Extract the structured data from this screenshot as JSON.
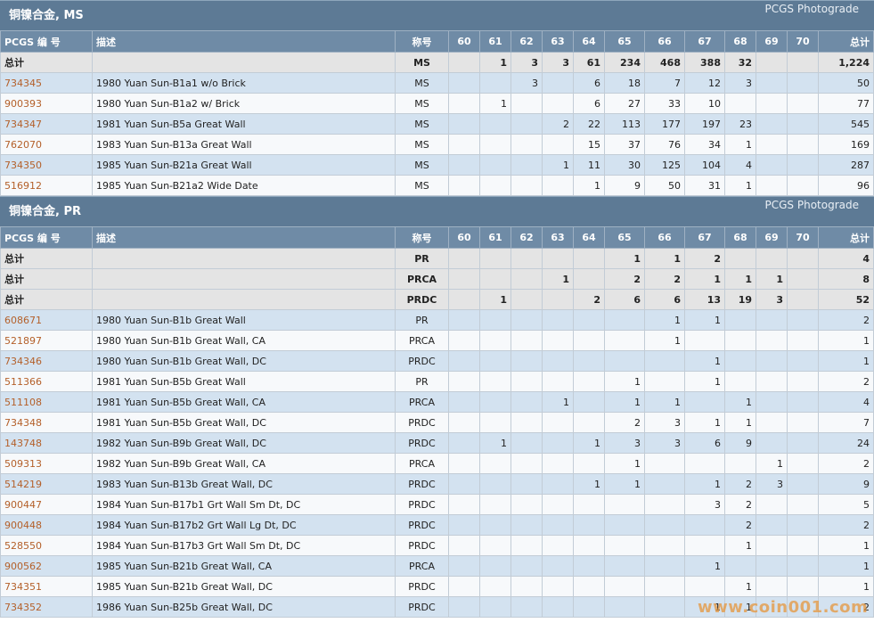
{
  "columns": [
    "PCGS 编 号",
    "描述",
    "称号",
    "60",
    "61",
    "62",
    "63",
    "64",
    "65",
    "66",
    "67",
    "68",
    "69",
    "70",
    "总计"
  ],
  "sections": [
    {
      "title": "铜镍合金, MS",
      "right_label": "PCGS Photograde",
      "totals": [
        {
          "label": "总计",
          "designation": "MS",
          "grades": [
            "",
            "1",
            "3",
            "3",
            "61",
            "234",
            "468",
            "388",
            "32",
            "",
            ""
          ],
          "total": "1,224"
        }
      ],
      "rows": [
        {
          "code": "734345",
          "desc": "1980 Yuan Sun-B1a1 w/o Brick",
          "designation": "MS",
          "grades": [
            "",
            "",
            "3",
            "",
            "6",
            "18",
            "7",
            "12",
            "3",
            "",
            ""
          ],
          "total": "50"
        },
        {
          "code": "900393",
          "desc": "1980 Yuan Sun-B1a2 w/ Brick",
          "designation": "MS",
          "grades": [
            "",
            "1",
            "",
            "",
            "6",
            "27",
            "33",
            "10",
            "",
            "",
            ""
          ],
          "total": "77"
        },
        {
          "code": "734347",
          "desc": "1981 Yuan Sun-B5a Great Wall",
          "designation": "MS",
          "grades": [
            "",
            "",
            "",
            "2",
            "22",
            "113",
            "177",
            "197",
            "23",
            "",
            ""
          ],
          "total": "545"
        },
        {
          "code": "762070",
          "desc": "1983 Yuan Sun-B13a Great Wall",
          "designation": "MS",
          "grades": [
            "",
            "",
            "",
            "",
            "15",
            "37",
            "76",
            "34",
            "1",
            "",
            ""
          ],
          "total": "169"
        },
        {
          "code": "734350",
          "desc": "1985 Yuan Sun-B21a Great Wall",
          "designation": "MS",
          "grades": [
            "",
            "",
            "",
            "1",
            "11",
            "30",
            "125",
            "104",
            "4",
            "",
            ""
          ],
          "total": "287"
        },
        {
          "code": "516912",
          "desc": "1985 Yuan Sun-B21a2 Wide Date",
          "designation": "MS",
          "grades": [
            "",
            "",
            "",
            "",
            "1",
            "9",
            "50",
            "31",
            "1",
            "",
            ""
          ],
          "total": "96"
        }
      ]
    },
    {
      "title": "铜镍合金, PR",
      "right_label": "PCGS Photograde",
      "totals": [
        {
          "label": "总计",
          "designation": "PR",
          "grades": [
            "",
            "",
            "",
            "",
            "",
            "1",
            "1",
            "2",
            "",
            "",
            ""
          ],
          "total": "4"
        },
        {
          "label": "总计",
          "designation": "PRCA",
          "grades": [
            "",
            "",
            "",
            "1",
            "",
            "2",
            "2",
            "1",
            "1",
            "1",
            ""
          ],
          "total": "8"
        },
        {
          "label": "总计",
          "designation": "PRDC",
          "grades": [
            "",
            "1",
            "",
            "",
            "2",
            "6",
            "6",
            "13",
            "19",
            "3",
            ""
          ],
          "total": "52"
        }
      ],
      "rows": [
        {
          "code": "608671",
          "desc": "1980 Yuan Sun-B1b Great Wall",
          "designation": "PR",
          "grades": [
            "",
            "",
            "",
            "",
            "",
            "",
            "1",
            "1",
            "",
            "",
            ""
          ],
          "total": "2"
        },
        {
          "code": "521897",
          "desc": "1980 Yuan Sun-B1b Great Wall, CA",
          "designation": "PRCA",
          "grades": [
            "",
            "",
            "",
            "",
            "",
            "",
            "1",
            "",
            "",
            "",
            ""
          ],
          "total": "1"
        },
        {
          "code": "734346",
          "desc": "1980 Yuan Sun-B1b Great Wall, DC",
          "designation": "PRDC",
          "grades": [
            "",
            "",
            "",
            "",
            "",
            "",
            "",
            "1",
            "",
            "",
            ""
          ],
          "total": "1"
        },
        {
          "code": "511366",
          "desc": "1981 Yuan Sun-B5b Great Wall",
          "designation": "PR",
          "grades": [
            "",
            "",
            "",
            "",
            "",
            "1",
            "",
            "1",
            "",
            "",
            ""
          ],
          "total": "2"
        },
        {
          "code": "511108",
          "desc": "1981 Yuan Sun-B5b Great Wall, CA",
          "designation": "PRCA",
          "grades": [
            "",
            "",
            "",
            "1",
            "",
            "1",
            "1",
            "",
            "1",
            "",
            ""
          ],
          "total": "4"
        },
        {
          "code": "734348",
          "desc": "1981 Yuan Sun-B5b Great Wall, DC",
          "designation": "PRDC",
          "grades": [
            "",
            "",
            "",
            "",
            "",
            "2",
            "3",
            "1",
            "1",
            "",
            ""
          ],
          "total": "7"
        },
        {
          "code": "143748",
          "desc": "1982 Yuan Sun-B9b Great Wall, DC",
          "designation": "PRDC",
          "grades": [
            "",
            "1",
            "",
            "",
            "1",
            "3",
            "3",
            "6",
            "9",
            "",
            ""
          ],
          "total": "24"
        },
        {
          "code": "509313",
          "desc": "1982 Yuan Sun-B9b Great Wall, CA",
          "designation": "PRCA",
          "grades": [
            "",
            "",
            "",
            "",
            "",
            "1",
            "",
            "",
            "",
            "1",
            ""
          ],
          "total": "2"
        },
        {
          "code": "514219",
          "desc": "1983 Yuan Sun-B13b Great Wall, DC",
          "designation": "PRDC",
          "grades": [
            "",
            "",
            "",
            "",
            "1",
            "1",
            "",
            "1",
            "2",
            "3",
            ""
          ],
          "total": "9"
        },
        {
          "code": "900447",
          "desc": "1984 Yuan Sun-B17b1 Grt Wall Sm Dt, DC",
          "designation": "PRDC",
          "grades": [
            "",
            "",
            "",
            "",
            "",
            "",
            "",
            "3",
            "2",
            "",
            ""
          ],
          "total": "5"
        },
        {
          "code": "900448",
          "desc": "1984 Yuan Sun-B17b2 Grt Wall Lg Dt, DC",
          "designation": "PRDC",
          "grades": [
            "",
            "",
            "",
            "",
            "",
            "",
            "",
            "",
            "2",
            "",
            ""
          ],
          "total": "2"
        },
        {
          "code": "528550",
          "desc": "1984 Yuan Sun-B17b3 Grt Wall Sm Dt, DC",
          "designation": "PRDC",
          "grades": [
            "",
            "",
            "",
            "",
            "",
            "",
            "",
            "",
            "1",
            "",
            ""
          ],
          "total": "1"
        },
        {
          "code": "900562",
          "desc": "1985 Yuan Sun-B21b Great Wall, CA",
          "designation": "PRCA",
          "grades": [
            "",
            "",
            "",
            "",
            "",
            "",
            "",
            "1",
            "",
            "",
            ""
          ],
          "total": "1"
        },
        {
          "code": "734351",
          "desc": "1985 Yuan Sun-B21b Great Wall, DC",
          "designation": "PRDC",
          "grades": [
            "",
            "",
            "",
            "",
            "",
            "",
            "",
            "",
            "1",
            "",
            ""
          ],
          "total": "1"
        },
        {
          "code": "734352",
          "desc": "1986 Yuan Sun-B25b Great Wall, DC",
          "designation": "PRDC",
          "grades": [
            "",
            "",
            "",
            "",
            "",
            "",
            "",
            "1",
            "1",
            "",
            ""
          ],
          "total": "2"
        }
      ]
    }
  ],
  "watermark": "www.coin001.com",
  "colors": {
    "header_bg": "#5d7a95",
    "column_header_bg": "#6f8ba6",
    "row_odd": "#d3e2f0",
    "row_even": "#f7f9fb",
    "total_row": "#e4e4e4",
    "code_link": "#b4602a"
  }
}
